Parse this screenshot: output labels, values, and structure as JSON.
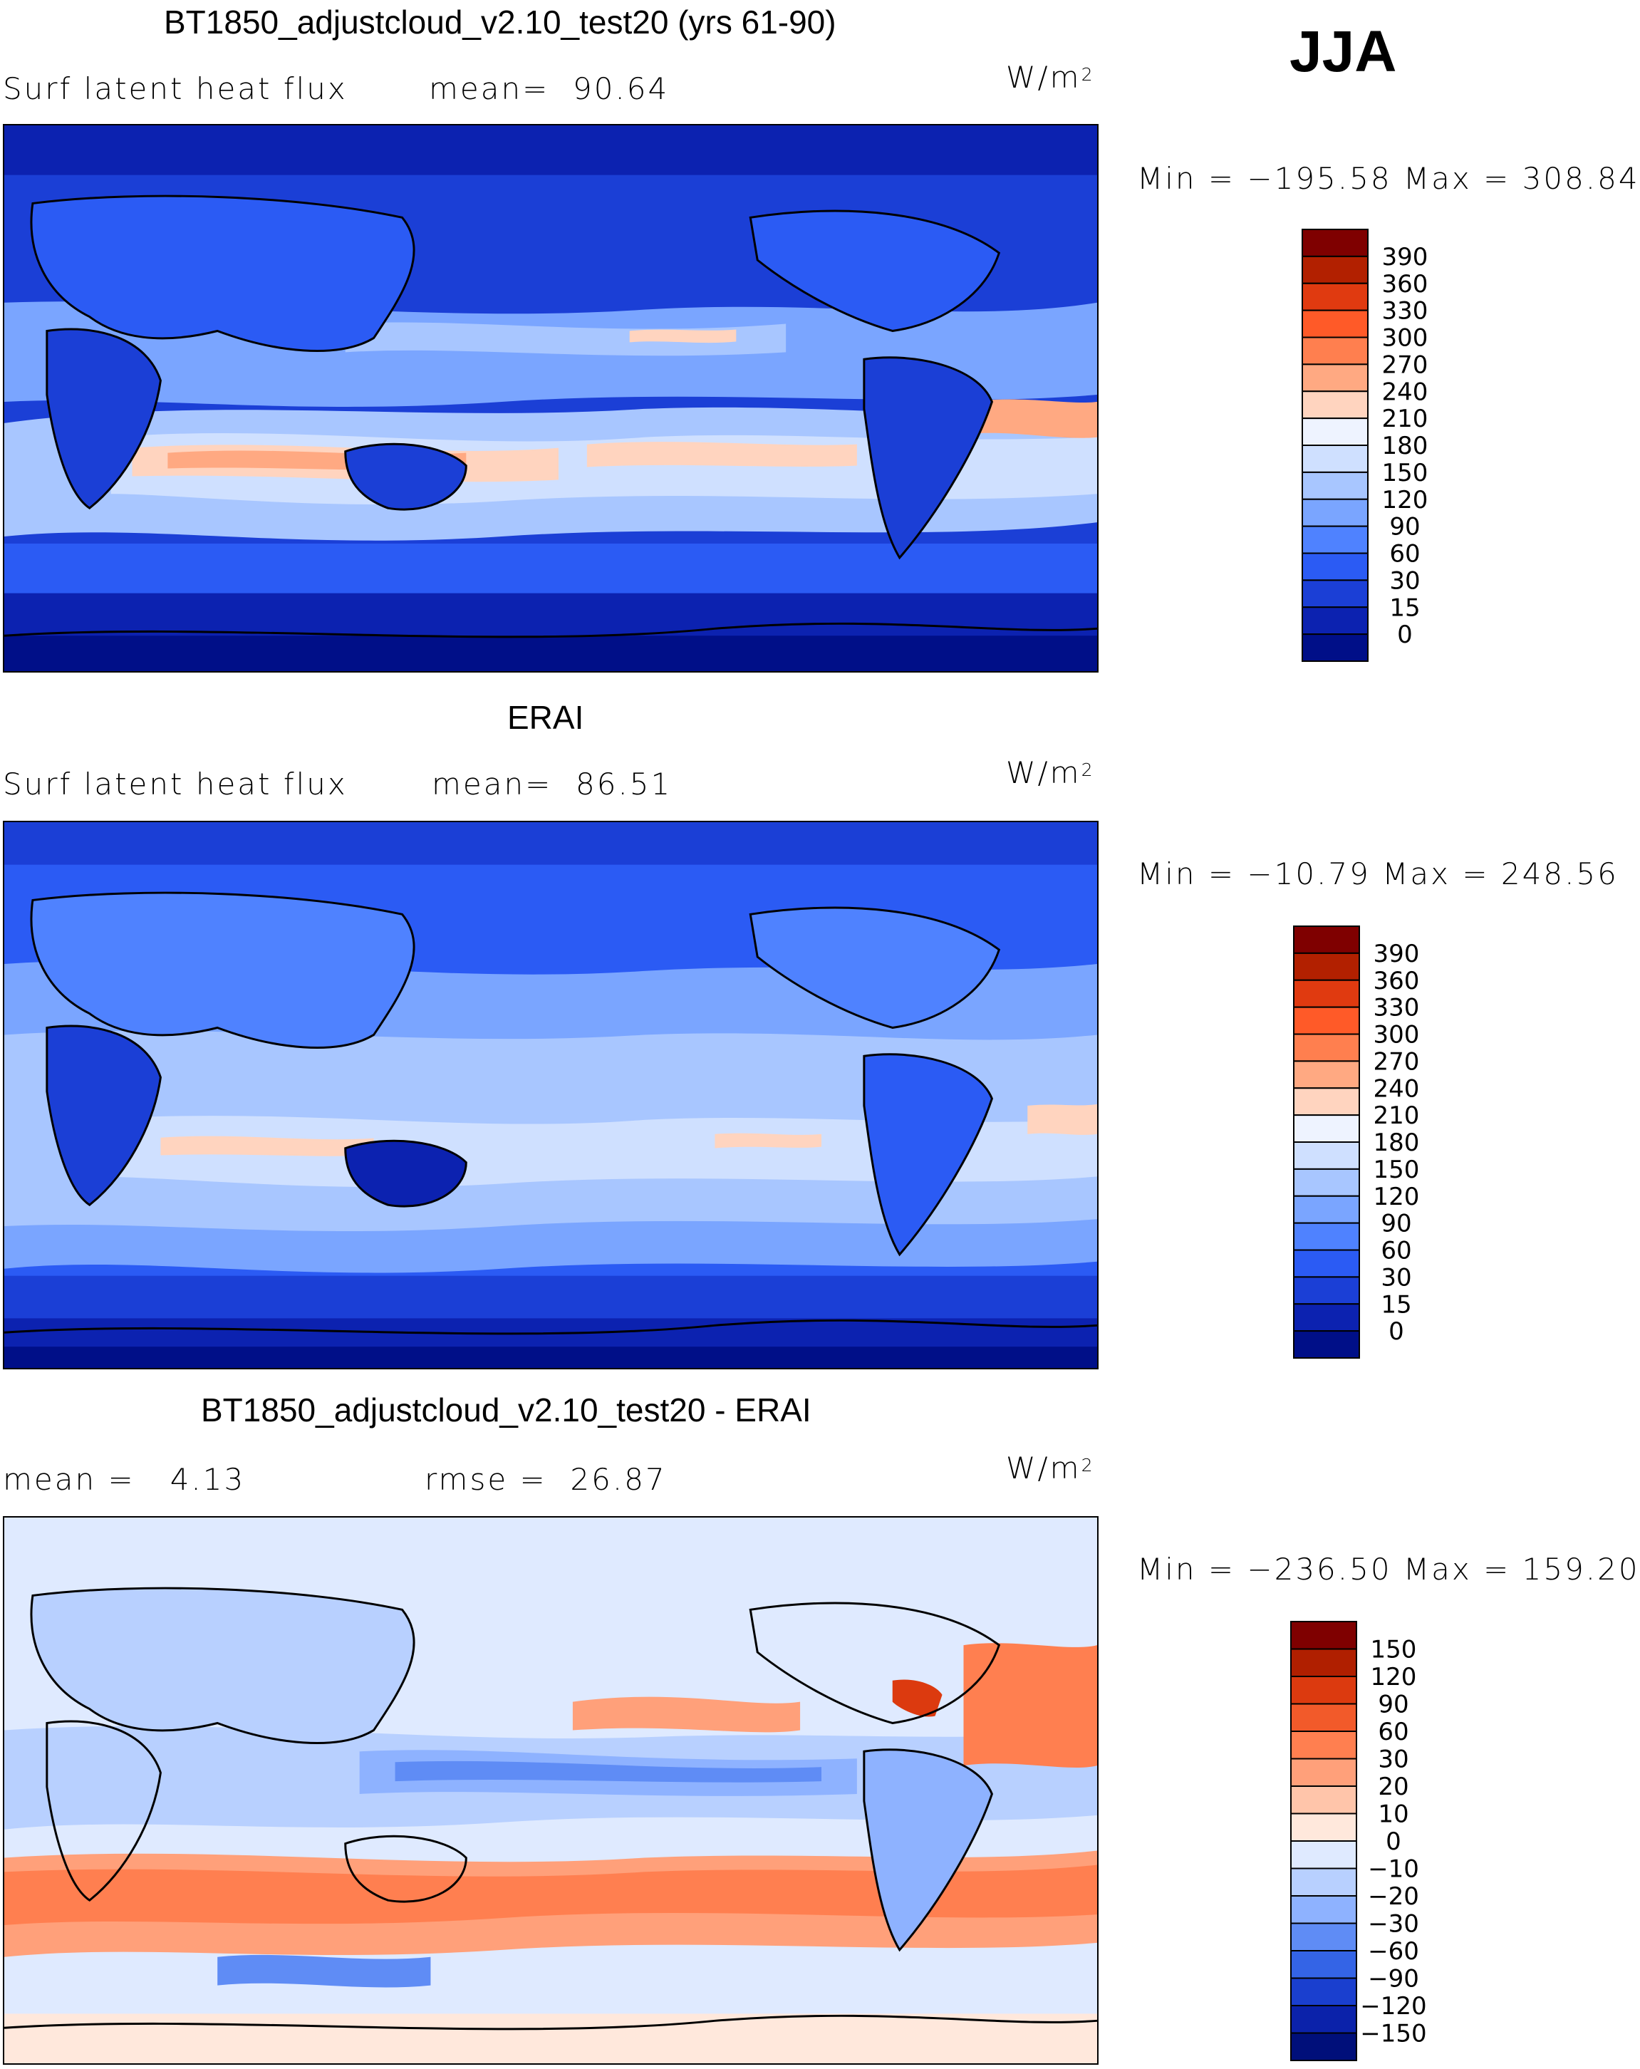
{
  "season": "JJA",
  "panels": [
    {
      "id": "model",
      "title": "BT1850_adjustcloud_v2.10_test20 (yrs 61-90)",
      "left_label": "Surf latent heat flux",
      "mid_label": "mean=  90.64",
      "units": "W/m",
      "units_sup": "2",
      "minmax": "Min = −195.58 Max = 308.84",
      "colorbar": {
        "labels": [
          "390",
          "360",
          "330",
          "300",
          "270",
          "240",
          "210",
          "180",
          "150",
          "120",
          "90",
          "60",
          "30",
          "15",
          "0"
        ],
        "colors": [
          "#7f0000",
          "#b22000",
          "#e03a10",
          "#ff5a28",
          "#ff7f4f",
          "#ffa982",
          "#ffd4bf",
          "#eef3ff",
          "#cfe0ff",
          "#a8c6ff",
          "#7aa5ff",
          "#4f82ff",
          "#2b5bf4",
          "#1b3fd6",
          "#0c22b0",
          "#000f88"
        ]
      }
    },
    {
      "id": "obs",
      "title": "ERAI",
      "left_label": "Surf latent heat flux",
      "mid_label": "mean=  86.51",
      "units": "W/m",
      "units_sup": "2",
      "minmax": "Min = −10.79 Max = 248.56",
      "colorbar": {
        "labels": [
          "390",
          "360",
          "330",
          "300",
          "270",
          "240",
          "210",
          "180",
          "150",
          "120",
          "90",
          "60",
          "30",
          "15",
          "0"
        ],
        "colors": [
          "#7f0000",
          "#b22000",
          "#e03a10",
          "#ff5a28",
          "#ff7f4f",
          "#ffa982",
          "#ffd4bf",
          "#eef3ff",
          "#cfe0ff",
          "#a8c6ff",
          "#7aa5ff",
          "#4f82ff",
          "#2b5bf4",
          "#1b3fd6",
          "#0c22b0",
          "#000f88"
        ]
      }
    },
    {
      "id": "diff",
      "title": "BT1850_adjustcloud_v2.10_test20 - ERAI",
      "left_label": "mean =   4.13",
      "mid_label": "rmse =  26.87",
      "units": "W/m",
      "units_sup": "2",
      "minmax": "Min = −236.50 Max = 159.20",
      "colorbar": {
        "labels": [
          "150",
          "120",
          "90",
          "60",
          "30",
          "20",
          "10",
          "0",
          "−10",
          "−20",
          "−30",
          "−60",
          "−90",
          "−120",
          "−150"
        ],
        "colors": [
          "#7f0000",
          "#b01f00",
          "#dc3a0f",
          "#f25a2a",
          "#ff7f50",
          "#ffa07a",
          "#ffc5aa",
          "#ffe8dc",
          "#dfeaff",
          "#b8d0ff",
          "#8eb2ff",
          "#5f8cf5",
          "#3464e6",
          "#1a3fcf",
          "#0b22aa",
          "#000f7a"
        ]
      }
    }
  ]
}
